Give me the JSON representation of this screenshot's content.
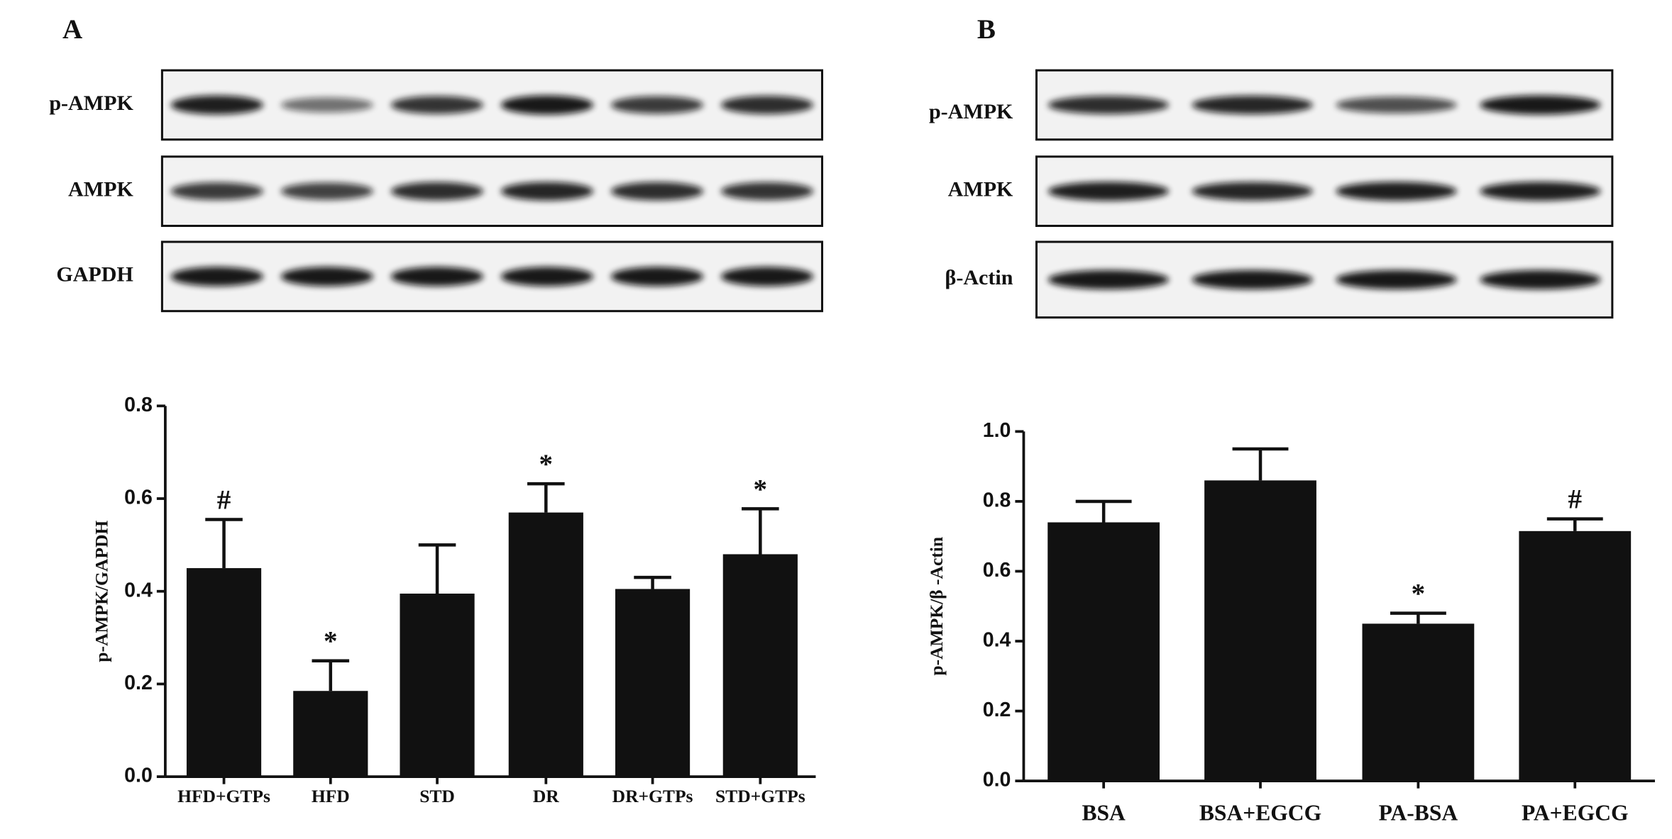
{
  "panels": [
    {
      "label": "A",
      "blot_rows": [
        "p-AMPK",
        "AMPK",
        "GAPDH"
      ]
    },
    {
      "label": "B",
      "blot_rows": [
        "p-AMPK",
        "AMPK",
        "β-Actin"
      ]
    }
  ],
  "chart_data": [
    {
      "type": "bar",
      "ylabel": "p-AMPK/GAPDH",
      "categories": [
        "HFD+GTPs",
        "HFD",
        "STD",
        "DR",
        "DR+GTPs",
        "STD+GTPs"
      ],
      "values": [
        0.45,
        0.185,
        0.395,
        0.57,
        0.405,
        0.48
      ],
      "errors": [
        0.105,
        0.065,
        0.105,
        0.062,
        0.025,
        0.098
      ],
      "annotations": [
        "#",
        "*",
        null,
        "*",
        null,
        "*"
      ],
      "color": "#111111",
      "ylim": [
        0,
        0.8
      ],
      "yticks": [
        {
          "value": 0,
          "label": "0.0"
        },
        0.2,
        0.4,
        0.6,
        0.8
      ]
    },
    {
      "type": "bar",
      "ylabel": "p-AMPK/β -Actin",
      "categories": [
        "BSA",
        "BSA+EGCG",
        "PA-BSA",
        "PA+EGCG"
      ],
      "values": [
        0.74,
        0.86,
        0.45,
        0.715
      ],
      "errors": [
        0.06,
        0.09,
        0.03,
        0.035
      ],
      "annotations": [
        null,
        null,
        "*",
        "#"
      ],
      "color": "#111111",
      "ylim": [
        0,
        1
      ],
      "yticks": [
        {
          "value": 0,
          "label": "0.0"
        },
        0.2,
        0.4,
        0.6,
        0.8,
        {
          "value": 1,
          "label": "1.0"
        }
      ]
    }
  ]
}
